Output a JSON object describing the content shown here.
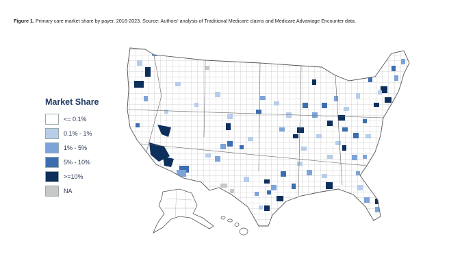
{
  "figure": {
    "label": "Figure 1.",
    "caption": "Primary care market share by payer, 2016-2023. Source: Authors' analysis of Traditional Medicare claims and Medicare Advantage Encounter data."
  },
  "legend": {
    "title": "Market Share",
    "items": [
      {
        "label": "<= 0.1%",
        "color": "#ffffff"
      },
      {
        "label": "0.1% - 1%",
        "color": "#b7cdea"
      },
      {
        "label": "1% - 5%",
        "color": "#7ca4d8"
      },
      {
        "label": "5% - 10%",
        "color": "#3c6db0"
      },
      {
        "label": ">=10%",
        "color": "#0d2f5c"
      },
      {
        "label": "NA",
        "color": "#c8c8c8"
      }
    ]
  },
  "colors": {
    "border": "#555555",
    "land": "#ffffff"
  }
}
